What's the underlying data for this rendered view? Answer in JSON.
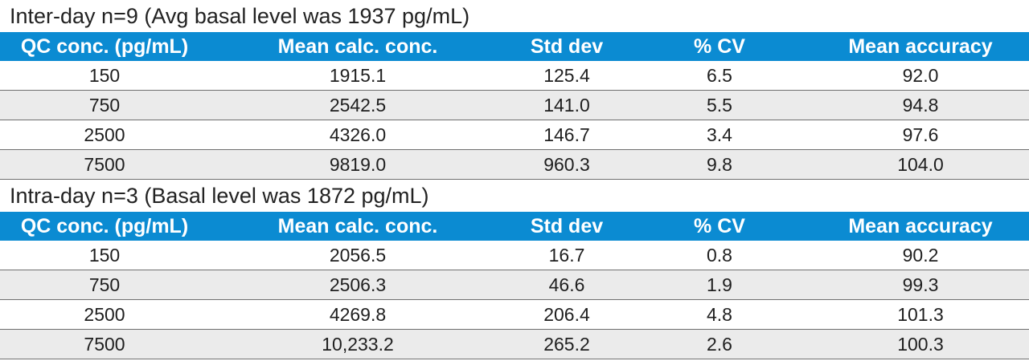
{
  "sections": [
    {
      "title": "Inter-day n=9 (Avg basal level was 1937 pg/mL)",
      "headers": [
        "QC conc. (pg/mL)",
        "Mean calc. conc.",
        "Std dev",
        "% CV",
        "Mean accuracy"
      ],
      "rows": [
        [
          "150",
          "1915.1",
          "125.4",
          "6.5",
          "92.0"
        ],
        [
          "750",
          "2542.5",
          "141.0",
          "5.5",
          "94.8"
        ],
        [
          "2500",
          "4326.0",
          "146.7",
          "3.4",
          "97.6"
        ],
        [
          "7500",
          "9819.0",
          "960.3",
          "9.8",
          "104.0"
        ]
      ]
    },
    {
      "title": "Intra-day n=3 (Basal level was 1872 pg/mL)",
      "headers": [
        "QC conc. (pg/mL)",
        "Mean calc. conc.",
        "Std dev",
        "% CV",
        "Mean accuracy"
      ],
      "rows": [
        [
          "150",
          "2056.5",
          "16.7",
          "0.8",
          "90.2"
        ],
        [
          "750",
          "2506.3",
          "46.6",
          "1.9",
          "99.3"
        ],
        [
          "2500",
          "4269.8",
          "206.4",
          "4.8",
          "101.3"
        ],
        [
          "7500",
          "10,233.2",
          "265.2",
          "2.6",
          "100.3"
        ]
      ]
    }
  ],
  "colors": {
    "header_bg": "#0b8bd2",
    "alt_row_bg": "#ebebeb"
  }
}
